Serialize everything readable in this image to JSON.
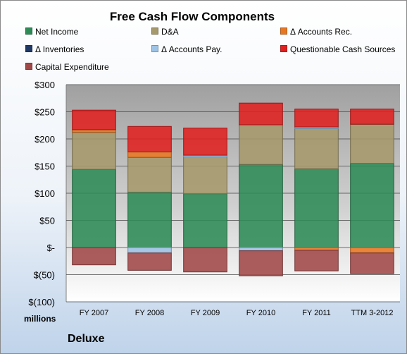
{
  "chart_data": {
    "type": "bar",
    "stacked": true,
    "title": "Free Cash Flow Components",
    "ylabel": "millions",
    "company": "Deluxe",
    "ylim": [
      -100,
      300
    ],
    "yticks": [
      300,
      250,
      200,
      150,
      100,
      50,
      0,
      -50,
      -100
    ],
    "ytick_labels": [
      "$300",
      "$250",
      "$200",
      "$150",
      "$100",
      "$50",
      "$-",
      "$(50)",
      "$(100)"
    ],
    "grid": true,
    "legend_position": "top",
    "categories": [
      "FY 2007",
      "FY 2008",
      "FY 2009",
      "FY 2010",
      "FY 2011",
      "TTM 3-2012"
    ],
    "series": [
      {
        "name": "Net Income",
        "color": "#2e8b57",
        "values": [
          144,
          102,
          99,
          153,
          145,
          155
        ]
      },
      {
        "name": "D&A",
        "color": "#a6996b",
        "values": [
          68,
          64,
          68,
          73,
          74,
          72
        ]
      },
      {
        "name": "Δ Accounts Rec.",
        "color": "#e87722",
        "values": [
          5,
          10,
          0,
          0,
          -5,
          -10
        ]
      },
      {
        "name": "Δ Inventories",
        "color": "#1f3864",
        "values": [
          0,
          0,
          0,
          0,
          0,
          0
        ]
      },
      {
        "name": "Δ Accounts Pay.",
        "color": "#9dc3e6",
        "values": [
          0,
          -10,
          3,
          -6,
          3,
          0
        ]
      },
      {
        "name": "Questionable Cash Sources",
        "color": "#e02020",
        "values": [
          36,
          47,
          50,
          40,
          33,
          28
        ]
      },
      {
        "name": "Capital Expenditure",
        "color": "#a04848",
        "values": [
          -32,
          -32,
          -45,
          -46,
          -38,
          -38
        ]
      }
    ]
  }
}
